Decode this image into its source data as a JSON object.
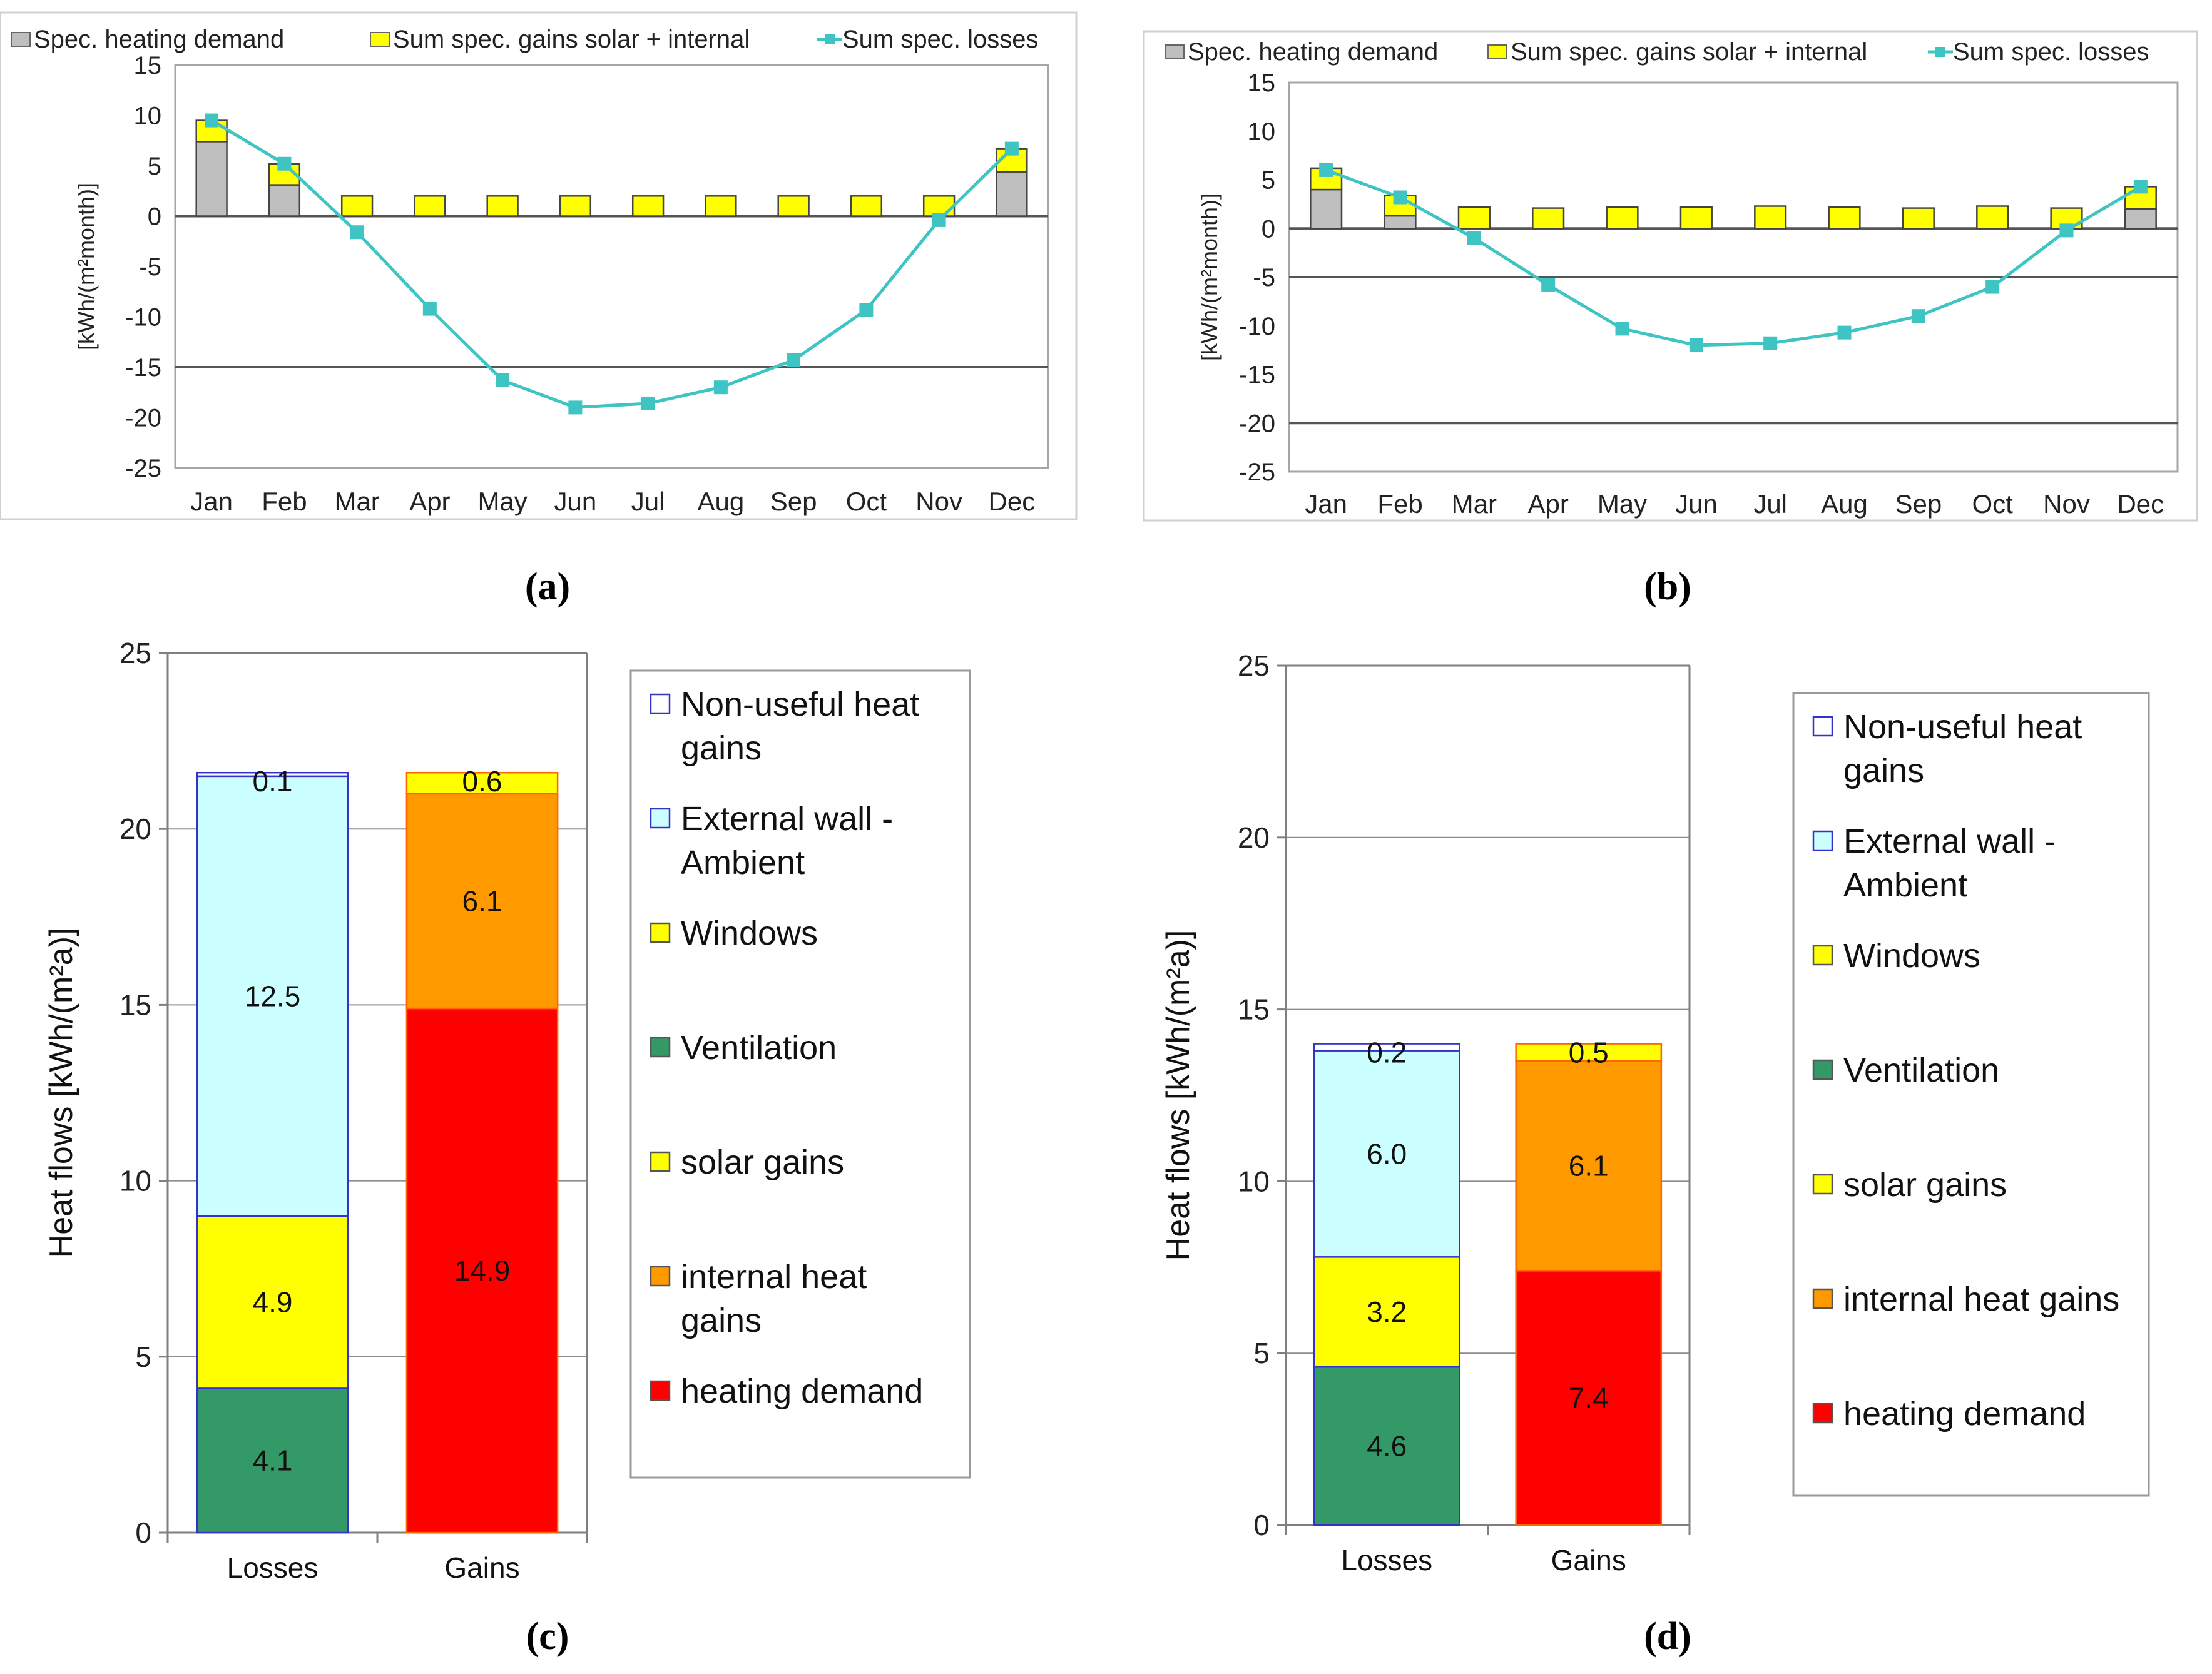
{
  "chart_data": [
    {
      "panel": "a",
      "type": "bar+line",
      "legend": [
        "Spec. heating demand",
        "Sum spec. gains solar + internal",
        "Sum spec. losses"
      ],
      "ylabel": "[kWh/(m²month)]",
      "ylim": [
        -25,
        15
      ],
      "yticks": [
        15,
        10,
        5,
        0,
        -5,
        -10,
        -15,
        -20,
        -25
      ],
      "categories": [
        "Jan",
        "Feb",
        "Mar",
        "Apr",
        "May",
        "Jun",
        "Jul",
        "Aug",
        "Sep",
        "Oct",
        "Nov",
        "Dec"
      ],
      "series": [
        {
          "name": "Spec. heating demand",
          "values": [
            7.4,
            3.1,
            0,
            0,
            0,
            0,
            0,
            0,
            0,
            0,
            0,
            4.4
          ]
        },
        {
          "name": "Sum spec. gains solar + internal",
          "values": [
            2.1,
            2.1,
            2.0,
            2.0,
            2.0,
            2.0,
            2.0,
            2.0,
            2.0,
            2.0,
            2.0,
            2.3
          ]
        },
        {
          "name": "Sum spec. losses",
          "values": [
            9.5,
            5.2,
            -1.6,
            -9.2,
            -16.3,
            -19.0,
            -18.6,
            -17.0,
            -14.3,
            -9.3,
            -0.4,
            6.7
          ]
        }
      ],
      "reference_lines": [
        0,
        -15
      ],
      "label": "(a)"
    },
    {
      "panel": "b",
      "type": "bar+line",
      "legend": [
        "Spec. heating demand",
        "Sum spec. gains solar + internal",
        "Sum spec. losses"
      ],
      "ylabel": "[kWh/(m²month)]",
      "ylim": [
        -25,
        15
      ],
      "yticks": [
        15,
        10,
        5,
        0,
        -5,
        -10,
        -15,
        -20,
        -25
      ],
      "categories": [
        "Jan",
        "Feb",
        "Mar",
        "Apr",
        "May",
        "Jun",
        "Jul",
        "Aug",
        "Sep",
        "Oct",
        "Nov",
        "Dec"
      ],
      "series": [
        {
          "name": "Spec. heating demand",
          "values": [
            4.0,
            1.3,
            0,
            0,
            0,
            0,
            0,
            0,
            0,
            0,
            0,
            2.0
          ]
        },
        {
          "name": "Sum spec. gains solar + internal",
          "values": [
            2.2,
            2.1,
            2.2,
            2.1,
            2.2,
            2.2,
            2.3,
            2.2,
            2.1,
            2.3,
            2.1,
            2.3
          ]
        },
        {
          "name": "Sum spec. losses",
          "values": [
            6.0,
            3.2,
            -1.0,
            -5.8,
            -10.3,
            -12.0,
            -11.8,
            -10.7,
            -9.0,
            -6.0,
            -0.2,
            4.3
          ]
        }
      ],
      "reference_lines": [
        0,
        -5,
        -20
      ],
      "label": "(b)"
    },
    {
      "panel": "c",
      "type": "stacked-bar",
      "ylabel": "Heat flows [kWh/(m²a)]",
      "ylim": [
        0,
        25
      ],
      "yticks": [
        0,
        5,
        10,
        15,
        20,
        25
      ],
      "categories": [
        "Losses",
        "Gains"
      ],
      "stacks": [
        [
          {
            "name": "Ventilation",
            "value": 4.1,
            "label": "4.1"
          },
          {
            "name": "Windows",
            "value": 4.9,
            "label": "4.9"
          },
          {
            "name": "External wall - Ambient",
            "value": 12.5,
            "label": "12.5"
          },
          {
            "name": "Non-useful heat gains",
            "value": 0.1,
            "label": "0.1"
          }
        ],
        [
          {
            "name": "heating demand",
            "value": 14.9,
            "label": "14.9"
          },
          {
            "name": "internal heat gains",
            "value": 6.1,
            "label": "6.1"
          },
          {
            "name": "solar gains",
            "value": 0.6,
            "label": "0.6"
          }
        ]
      ],
      "legend": [
        {
          "lines": [
            "Non-useful heat",
            "gains"
          ],
          "key": "Non-useful heat gains"
        },
        {
          "lines": [
            "External wall -",
            "Ambient"
          ],
          "key": "External wall - Ambient"
        },
        {
          "lines": [
            "Windows"
          ],
          "key": "Windows"
        },
        {
          "lines": [
            "Ventilation"
          ],
          "key": "Ventilation"
        },
        {
          "lines": [
            "solar gains"
          ],
          "key": "solar gains"
        },
        {
          "lines": [
            "internal heat",
            "gains"
          ],
          "key": "internal heat gains"
        },
        {
          "lines": [
            "heating demand"
          ],
          "key": "heating demand"
        }
      ],
      "label": "(c)"
    },
    {
      "panel": "d",
      "type": "stacked-bar",
      "ylabel": "Heat flows [kWh/(m²a)]",
      "ylim": [
        0,
        25
      ],
      "yticks": [
        0,
        5,
        10,
        15,
        20,
        25
      ],
      "categories": [
        "Losses",
        "Gains"
      ],
      "stacks": [
        [
          {
            "name": "Ventilation",
            "value": 4.6,
            "label": "4.6"
          },
          {
            "name": "Windows",
            "value": 3.2,
            "label": "3.2"
          },
          {
            "name": "External wall - Ambient",
            "value": 6.0,
            "label": "6.0"
          },
          {
            "name": "Non-useful heat gains",
            "value": 0.2,
            "label": "0.2"
          }
        ],
        [
          {
            "name": "heating demand",
            "value": 7.4,
            "label": "7.4"
          },
          {
            "name": "internal heat gains",
            "value": 6.1,
            "label": "6.1"
          },
          {
            "name": "solar gains",
            "value": 0.5,
            "label": "0.5"
          }
        ]
      ],
      "legend": [
        {
          "lines": [
            "Non-useful heat",
            "gains"
          ],
          "key": "Non-useful heat gains"
        },
        {
          "lines": [
            "External wall -",
            "Ambient"
          ],
          "key": "External wall - Ambient"
        },
        {
          "lines": [
            "Windows"
          ],
          "key": "Windows"
        },
        {
          "lines": [
            "Ventilation"
          ],
          "key": "Ventilation"
        },
        {
          "lines": [
            "solar gains"
          ],
          "key": "solar gains"
        },
        {
          "lines": [
            "internal heat gains"
          ],
          "key": "internal heat gains"
        },
        {
          "lines": [
            "heating demand"
          ],
          "key": "heating demand"
        }
      ],
      "label": "(d)"
    }
  ],
  "colors": {
    "heating_demand_monthly": "#bfbfbf",
    "gains_monthly": "#ffff00",
    "losses_line": "#3fc4c4",
    "Non-useful heat gains": "#ffffff",
    "External wall - Ambient": "#ccffff",
    "Windows": "#ffff00",
    "Ventilation": "#339966",
    "solar gains": "#ffff00",
    "internal heat gains": "#ff9900",
    "heating demand": "#ff0000",
    "seg_border_losses": "#3333cc",
    "seg_border_gains": "#ff6600"
  }
}
